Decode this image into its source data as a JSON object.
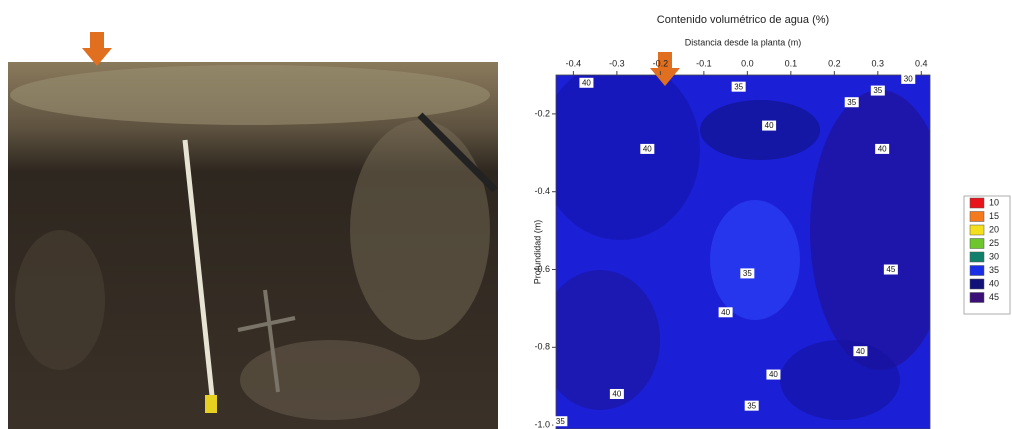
{
  "chart_data": {
    "type": "contour",
    "title": "Contenido volumétrico de agua (%)",
    "x_label": "Distancia desde la planta (m)",
    "y_label": "Profundidad (m)",
    "xlim": [
      -0.44,
      0.42
    ],
    "ylim": [
      -0.1,
      -1.01
    ],
    "xticks": [
      -0.4,
      -0.3,
      -0.2,
      -0.1,
      {
        "value": 0,
        "label": "0.0"
      },
      0.1,
      0.2,
      0.3,
      0.4
    ],
    "yticks": [
      -0.2,
      -0.4,
      -0.6,
      -0.8,
      {
        "value": -1,
        "label": "-1.0"
      }
    ],
    "legend": [
      {
        "label": 10,
        "color": "#e8141c"
      },
      {
        "label": 15,
        "color": "#f57a1e"
      },
      {
        "label": 20,
        "color": "#f4df1c"
      },
      {
        "label": 25,
        "color": "#6cc62c"
      },
      {
        "label": 30,
        "color": "#11806a"
      },
      {
        "label": 35,
        "color": "#1a2ee6"
      },
      {
        "label": 40,
        "color": "#10127a"
      },
      {
        "label": 45,
        "color": "#3a1078"
      }
    ],
    "contour_labels": [
      {
        "value": 40,
        "x": -0.37,
        "y": -0.12
      },
      {
        "value": 35,
        "x": -0.02,
        "y": -0.13
      },
      {
        "value": 35,
        "x": 0.24,
        "y": -0.17
      },
      {
        "value": 35,
        "x": 0.3,
        "y": -0.14
      },
      {
        "value": 30,
        "x": 0.37,
        "y": -0.11
      },
      {
        "value": 40,
        "x": 0.05,
        "y": -0.23
      },
      {
        "value": 40,
        "x": -0.23,
        "y": -0.29
      },
      {
        "value": 40,
        "x": 0.31,
        "y": -0.29
      },
      {
        "value": 35,
        "x": 0,
        "y": -0.61
      },
      {
        "value": 45,
        "x": 0.33,
        "y": -0.6
      },
      {
        "value": 40,
        "x": -0.05,
        "y": -0.71
      },
      {
        "value": 40,
        "x": 0.26,
        "y": -0.81
      },
      {
        "value": 40,
        "x": 0.06,
        "y": -0.87
      },
      {
        "value": 40,
        "x": -0.3,
        "y": -0.92
      },
      {
        "value": 35,
        "x": 0.01,
        "y": -0.95
      },
      {
        "value": 35,
        "x": -0.43,
        "y": -0.99
      }
    ]
  }
}
